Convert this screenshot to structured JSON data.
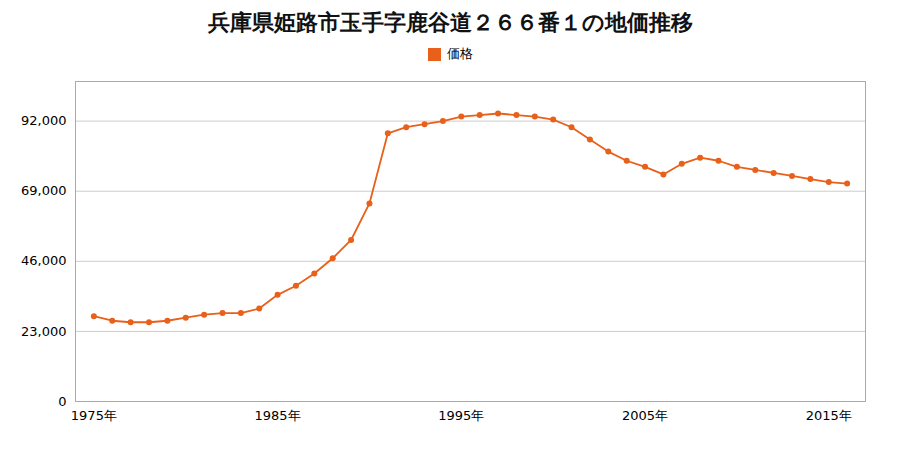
{
  "chart_data": {
    "type": "line",
    "title": "兵庫県姫路市玉手字鹿谷道２６６番１の地価推移",
    "x": [
      1975,
      1976,
      1977,
      1978,
      1979,
      1980,
      1981,
      1982,
      1983,
      1984,
      1985,
      1986,
      1987,
      1988,
      1989,
      1990,
      1991,
      1992,
      1993,
      1994,
      1995,
      1996,
      1997,
      1998,
      1999,
      2000,
      2001,
      2002,
      2003,
      2004,
      2005,
      2006,
      2007,
      2008,
      2009,
      2010,
      2011,
      2012,
      2013,
      2014,
      2015,
      2016
    ],
    "series": [
      {
        "name": "価格",
        "color": "#e8601a",
        "marker": "circle",
        "values": [
          28000,
          26500,
          26000,
          26000,
          26500,
          27500,
          28500,
          29000,
          29000,
          30500,
          35000,
          38000,
          42000,
          47000,
          53000,
          65000,
          88000,
          90000,
          91000,
          92000,
          93500,
          94000,
          94500,
          94000,
          93500,
          92500,
          90000,
          86000,
          82000,
          79000,
          77000,
          74500,
          78000,
          80000,
          79000,
          77000,
          76000,
          75000,
          74000,
          73000,
          72000,
          71500
        ]
      }
    ],
    "xlim": [
      1974,
      2017
    ],
    "xticks": [
      {
        "value": 1975,
        "label": "1975年"
      },
      {
        "value": 1985,
        "label": "1985年"
      },
      {
        "value": 1995,
        "label": "1995年"
      },
      {
        "value": 2005,
        "label": "2005年"
      },
      {
        "value": 2015,
        "label": "2015年"
      }
    ],
    "ylim": [
      0,
      105000
    ],
    "yticks": [
      0,
      {
        "value": 23000,
        "label": "23,000"
      },
      {
        "value": 46000,
        "label": "46,000"
      },
      {
        "value": 69000,
        "label": "69,000"
      },
      {
        "value": 92000,
        "label": "92,000"
      }
    ],
    "grid": true,
    "legend": "top"
  }
}
